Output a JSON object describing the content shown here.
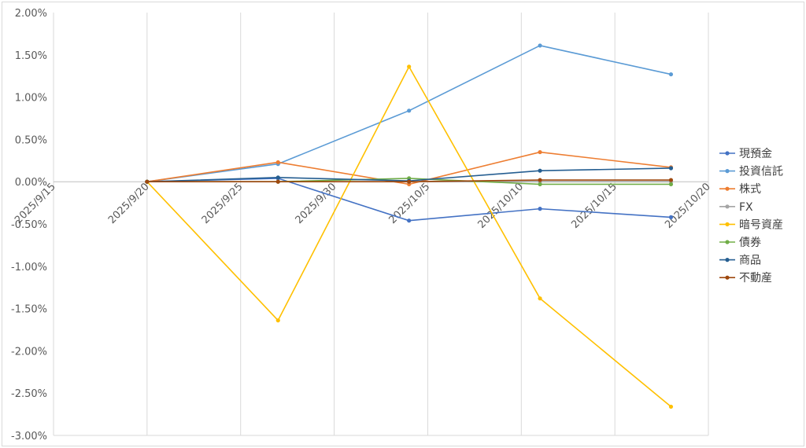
{
  "chart_data": {
    "type": "line",
    "title": "",
    "xlabel": "",
    "ylabel": "",
    "x_ticks": [
      "2025/9/15",
      "2025/9/20",
      "2025/9/25",
      "2025/9/30",
      "2025/10/5",
      "2025/10/10",
      "2025/10/15",
      "2025/10/20"
    ],
    "y_ticks": [
      "2.00%",
      "1.50%",
      "1.00%",
      "0.50%",
      "0.00%",
      "-0.50%",
      "-1.00%",
      "-1.50%",
      "-2.00%",
      "-2.50%",
      "-3.00%"
    ],
    "ylim": [
      -3.0,
      2.0
    ],
    "xlim": [
      "2025/9/15",
      "2025/10/20"
    ],
    "grid": "vertical",
    "legend_position": "right",
    "x": [
      "2025/9/20",
      "2025/9/27",
      "2025/10/4",
      "2025/10/11",
      "2025/10/18"
    ],
    "series": [
      {
        "name": "現預金",
        "color": "#4472C4",
        "values": [
          0.0,
          0.04,
          -0.46,
          -0.32,
          -0.42
        ]
      },
      {
        "name": "投資信託",
        "color": "#5B9BD5",
        "values": [
          0.0,
          0.21,
          0.84,
          1.61,
          1.27
        ]
      },
      {
        "name": "株式",
        "color": "#ED7D31",
        "values": [
          0.0,
          0.23,
          -0.03,
          0.35,
          0.17
        ]
      },
      {
        "name": "FX",
        "color": "#A5A5A5",
        "values": [
          0.0,
          0.0,
          0.0,
          0.0,
          0.0
        ]
      },
      {
        "name": "暗号資産",
        "color": "#FFC000",
        "values": [
          0.0,
          -1.64,
          1.36,
          -1.38,
          -2.66
        ]
      },
      {
        "name": "債券",
        "color": "#70AD47",
        "values": [
          0.0,
          0.0,
          0.04,
          -0.03,
          -0.03
        ]
      },
      {
        "name": "商品",
        "color": "#255E91",
        "values": [
          0.0,
          0.05,
          0.01,
          0.13,
          0.16
        ]
      },
      {
        "name": "不動産",
        "color": "#9E480E",
        "values": [
          0.0,
          0.0,
          0.0,
          0.02,
          0.02
        ]
      }
    ]
  }
}
